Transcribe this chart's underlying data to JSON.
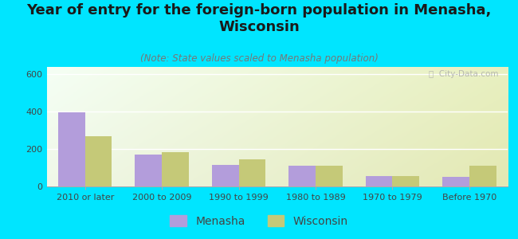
{
  "title": "Year of entry for the foreign-born population in Menasha,\nWisconsin",
  "subtitle": "(Note: State values scaled to Menasha population)",
  "categories": [
    "2010 or later",
    "2000 to 2009",
    "1990 to 1999",
    "1980 to 1989",
    "1970 to 1979",
    "Before 1970"
  ],
  "menasha_values": [
    395,
    170,
    115,
    110,
    55,
    50
  ],
  "wisconsin_values": [
    270,
    185,
    145,
    110,
    55,
    110
  ],
  "menasha_color": "#b39ddb",
  "wisconsin_color": "#c5c978",
  "background_outer": "#00e5ff",
  "ylim": [
    0,
    640
  ],
  "yticks": [
    0,
    200,
    400,
    600
  ],
  "bar_width": 0.35,
  "title_fontsize": 13,
  "subtitle_fontsize": 8.5,
  "tick_fontsize": 8,
  "legend_fontsize": 10,
  "watermark": "ⓘ  City-Data.com"
}
